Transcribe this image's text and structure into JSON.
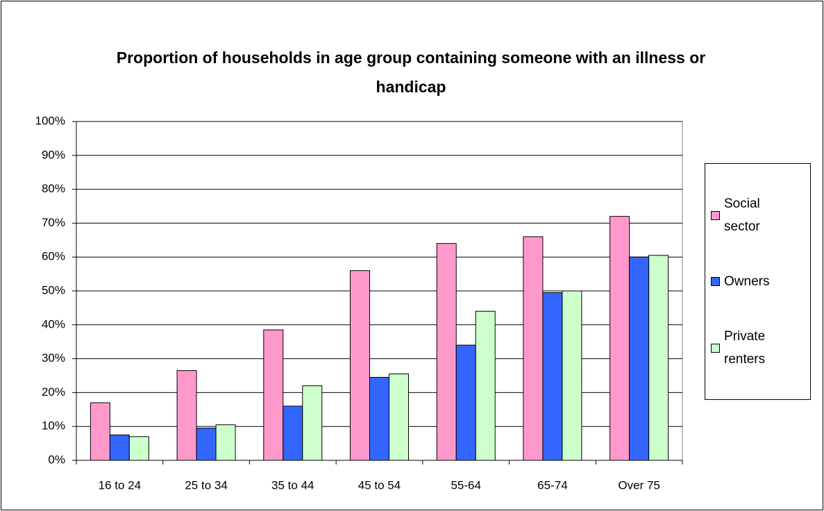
{
  "chart_data": {
    "type": "bar",
    "title": "Proportion of households in age group containing someone with an illness or handicap",
    "categories": [
      "16 to 24",
      "25 to 34",
      "35 to 44",
      "45 to 54",
      "55-64",
      "65-74",
      "Over 75"
    ],
    "series": [
      {
        "name": "Social sector",
        "color": "#ff99cc",
        "values": [
          17,
          26.5,
          38.5,
          56,
          64,
          66,
          72
        ]
      },
      {
        "name": "Owners",
        "color": "#3366ff",
        "values": [
          7.5,
          9.5,
          16,
          24.5,
          34,
          49.5,
          60
        ]
      },
      {
        "name": "Private renters",
        "color": "#ccffcc",
        "values": [
          7,
          10.5,
          22,
          25.5,
          44,
          50,
          60.5
        ]
      }
    ],
    "ylim": [
      0,
      100
    ],
    "yticks": [
      {
        "value": 0,
        "label": "0%"
      },
      {
        "value": 10,
        "label": "10%"
      },
      {
        "value": 20,
        "label": "20%"
      },
      {
        "value": 30,
        "label": "30%"
      },
      {
        "value": 40,
        "label": "40%"
      },
      {
        "value": 50,
        "label": "50%"
      },
      {
        "value": 60,
        "label": "60%"
      },
      {
        "value": 70,
        "label": "70%"
      },
      {
        "value": 80,
        "label": "80%"
      },
      {
        "value": 90,
        "label": "90%"
      },
      {
        "value": 100,
        "label": "100%"
      }
    ],
    "grid": true,
    "legend": "right"
  }
}
